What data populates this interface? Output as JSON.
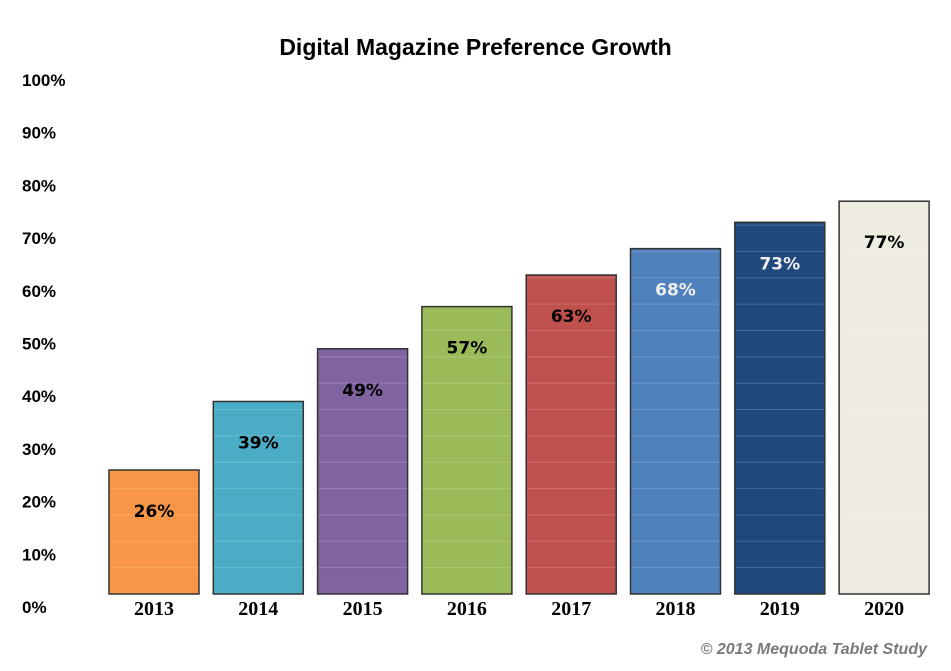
{
  "chart_data": {
    "type": "bar",
    "title": "Digital Magazine Preference Growth",
    "categories": [
      "2013",
      "2014",
      "2015",
      "2016",
      "2017",
      "2018",
      "2019",
      "2020"
    ],
    "values": [
      26,
      39,
      49,
      57,
      63,
      68,
      73,
      77
    ],
    "data_labels": [
      "26%",
      "39%",
      "49%",
      "57%",
      "63%",
      "68%",
      "73%",
      "77%"
    ],
    "colors": [
      "#f79646",
      "#4bacc6",
      "#8064a2",
      "#9bbb59",
      "#c0504d",
      "#4f81bd",
      "#1f497d",
      "#eeece1"
    ],
    "label_colors": [
      "#000000",
      "#000000",
      "#000000",
      "#000000",
      "#000000",
      "#eeeeee",
      "#eeeeee",
      "#000000"
    ],
    "ylim": [
      0,
      100
    ],
    "yticks": [
      0,
      10,
      20,
      30,
      40,
      50,
      60,
      70,
      80,
      90,
      100
    ],
    "ytick_labels": [
      "0%",
      "10%",
      "20%",
      "30%",
      "40%",
      "50%",
      "60%",
      "70%",
      "80%",
      "90%",
      "100%"
    ],
    "xlabel": "",
    "ylabel": "",
    "grid": true,
    "legend": "none"
  },
  "footer": "© 2013 Mequoda Tablet Study"
}
